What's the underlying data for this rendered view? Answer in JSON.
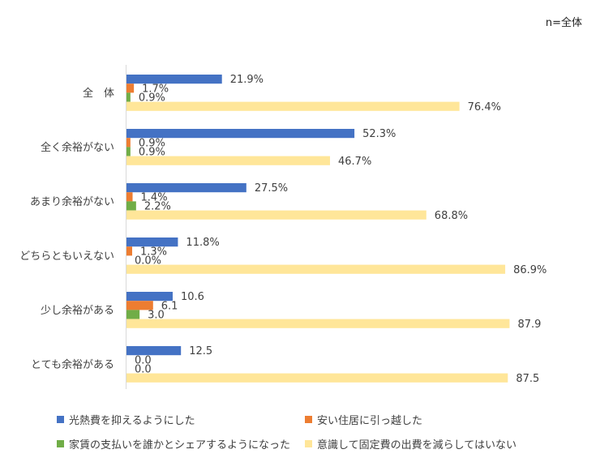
{
  "chart_data": {
    "type": "bar",
    "orientation": "horizontal",
    "note": "n=全体",
    "categories": [
      "全　体",
      "全く余裕がない",
      "あまり余裕がない",
      "どちらともいえない",
      "少し余裕がある",
      "とても余裕がある"
    ],
    "xlim": [
      0,
      100
    ],
    "grid": false,
    "legend_position": "bottom",
    "series": [
      {
        "name": "光熱費を抑えるようにした",
        "color": "#4472C4",
        "values": [
          21.9,
          52.3,
          27.5,
          11.8,
          10.6,
          12.5
        ],
        "labels": [
          "21.9%",
          "52.3%",
          "27.5%",
          "11.8%",
          "10.6",
          "12.5"
        ]
      },
      {
        "name": "安い住居に引っ越した",
        "color": "#ED7D31",
        "values": [
          1.7,
          0.9,
          1.4,
          1.3,
          6.1,
          0.0
        ],
        "labels": [
          "1.7%",
          "0.9%",
          "1.4%",
          "1.3%",
          "6.1",
          "0.0"
        ]
      },
      {
        "name": "家賃の支払いを誰かとシェアするようになった",
        "color": "#70AD47",
        "values": [
          0.9,
          0.9,
          2.2,
          0.0,
          3.0,
          0.0
        ],
        "labels": [
          "0.9%",
          "0.9%",
          "2.2%",
          "0.0%",
          "3.0",
          "0.0"
        ]
      },
      {
        "name": "意識して固定費の出費を減らしてはいない",
        "color": "#FFE699",
        "values": [
          76.4,
          46.7,
          68.8,
          86.9,
          87.9,
          87.5
        ],
        "labels": [
          "76.4%",
          "46.7%",
          "68.8%",
          "86.9%",
          "87.9",
          "87.5"
        ]
      }
    ]
  }
}
